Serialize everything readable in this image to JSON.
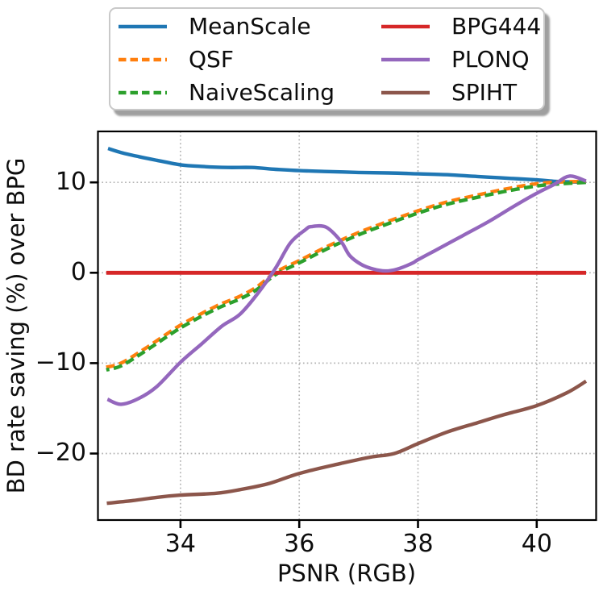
{
  "chart_data": {
    "type": "line",
    "xlabel": "PSNR (RGB)",
    "ylabel": "BD rate saving (%) over BPG",
    "xlim": [
      32.61,
      41.0
    ],
    "ylim": [
      -27.36,
      15.64
    ],
    "grid": true,
    "grid_color": "#b3b3b3",
    "spine_color": "#000000",
    "legend_border_color": "#c9c9c9",
    "legend_position": "top",
    "xticks": [
      {
        "value": 34,
        "label": "34"
      },
      {
        "value": 36,
        "label": "36"
      },
      {
        "value": 38,
        "label": "38"
      },
      {
        "value": 40,
        "label": "40"
      }
    ],
    "yticks": [
      {
        "value": 10,
        "label": "10"
      },
      {
        "value": 0,
        "label": "0"
      },
      {
        "value": -10,
        "label": "−10"
      },
      {
        "value": -20,
        "label": "−20"
      }
    ],
    "series": [
      {
        "name": "MeanScale",
        "color": "#1f77b4",
        "dashed": false,
        "points": [
          [
            32.78,
            13.75
          ],
          [
            33.0,
            13.3
          ],
          [
            33.3,
            12.85
          ],
          [
            33.6,
            12.45
          ],
          [
            34.0,
            11.95
          ],
          [
            34.4,
            11.75
          ],
          [
            34.8,
            11.65
          ],
          [
            35.2,
            11.65
          ],
          [
            35.6,
            11.45
          ],
          [
            36.0,
            11.3
          ],
          [
            36.5,
            11.2
          ],
          [
            37.0,
            11.1
          ],
          [
            37.5,
            11.05
          ],
          [
            38.0,
            10.95
          ],
          [
            38.5,
            10.85
          ],
          [
            39.0,
            10.65
          ],
          [
            39.4,
            10.5
          ],
          [
            40.0,
            10.28
          ],
          [
            40.3,
            10.12
          ],
          [
            40.6,
            10.05
          ],
          [
            40.83,
            10.05
          ]
        ]
      },
      {
        "name": "QSF",
        "color": "#ff7f0e",
        "dashed": true,
        "points": [
          [
            32.75,
            -10.45
          ],
          [
            33.0,
            -10.0
          ],
          [
            33.4,
            -8.4
          ],
          [
            34.0,
            -5.8
          ],
          [
            34.6,
            -3.7
          ],
          [
            35.0,
            -2.6
          ],
          [
            35.3,
            -1.5
          ],
          [
            35.6,
            0.05
          ],
          [
            36.0,
            1.35
          ],
          [
            36.5,
            3.0
          ],
          [
            37.0,
            4.45
          ],
          [
            37.4,
            5.45
          ],
          [
            38.0,
            6.85
          ],
          [
            38.5,
            7.85
          ],
          [
            39.0,
            8.6
          ],
          [
            39.5,
            9.3
          ],
          [
            40.0,
            9.85
          ],
          [
            40.4,
            10.05
          ],
          [
            40.83,
            10.1
          ]
        ]
      },
      {
        "name": "NaiveScaling",
        "color": "#2ca02c",
        "dashed": true,
        "points": [
          [
            32.75,
            -10.75
          ],
          [
            33.0,
            -10.3
          ],
          [
            33.4,
            -8.7
          ],
          [
            34.0,
            -6.1
          ],
          [
            34.6,
            -4.0
          ],
          [
            35.0,
            -2.9
          ],
          [
            35.3,
            -1.8
          ],
          [
            35.6,
            -0.2
          ],
          [
            36.0,
            1.1
          ],
          [
            36.5,
            2.75
          ],
          [
            37.0,
            4.2
          ],
          [
            37.4,
            5.2
          ],
          [
            38.0,
            6.6
          ],
          [
            38.5,
            7.6
          ],
          [
            39.0,
            8.35
          ],
          [
            39.5,
            9.05
          ],
          [
            40.0,
            9.6
          ],
          [
            40.4,
            9.85
          ],
          [
            40.83,
            10.0
          ]
        ]
      },
      {
        "name": "BPG444",
        "color": "#d62728",
        "dashed": false,
        "points": [
          [
            32.75,
            0
          ],
          [
            36.0,
            0
          ],
          [
            40.83,
            0
          ]
        ]
      },
      {
        "name": "PLONQ",
        "color": "#9467bd",
        "dashed": false,
        "points": [
          [
            32.77,
            -14.0
          ],
          [
            33.0,
            -14.55
          ],
          [
            33.3,
            -13.9
          ],
          [
            33.6,
            -12.6
          ],
          [
            34.0,
            -9.9
          ],
          [
            34.35,
            -7.9
          ],
          [
            34.7,
            -5.9
          ],
          [
            35.0,
            -4.6
          ],
          [
            35.3,
            -2.3
          ],
          [
            35.6,
            0.5
          ],
          [
            35.85,
            3.3
          ],
          [
            36.1,
            4.75
          ],
          [
            36.2,
            5.1
          ],
          [
            36.45,
            5.05
          ],
          [
            36.7,
            3.5
          ],
          [
            36.85,
            1.9
          ],
          [
            37.05,
            0.9
          ],
          [
            37.25,
            0.4
          ],
          [
            37.45,
            0.2
          ],
          [
            37.65,
            0.4
          ],
          [
            37.9,
            1.05
          ],
          [
            38.0,
            1.45
          ],
          [
            38.3,
            2.5
          ],
          [
            38.75,
            4.1
          ],
          [
            39.2,
            5.7
          ],
          [
            39.6,
            7.3
          ],
          [
            40.0,
            8.8
          ],
          [
            40.3,
            9.8
          ],
          [
            40.55,
            10.7
          ],
          [
            40.83,
            10.15
          ]
        ]
      },
      {
        "name": "SPIHT",
        "color": "#8c564b",
        "dashed": false,
        "points": [
          [
            32.76,
            -25.5
          ],
          [
            33.2,
            -25.2
          ],
          [
            33.6,
            -24.85
          ],
          [
            34.0,
            -24.6
          ],
          [
            34.6,
            -24.4
          ],
          [
            35.0,
            -24.0
          ],
          [
            35.5,
            -23.3
          ],
          [
            36.0,
            -22.2
          ],
          [
            36.7,
            -21.1
          ],
          [
            37.2,
            -20.4
          ],
          [
            37.6,
            -20.0
          ],
          [
            38.0,
            -18.9
          ],
          [
            38.5,
            -17.6
          ],
          [
            39.0,
            -16.6
          ],
          [
            39.45,
            -15.7
          ],
          [
            40.0,
            -14.7
          ],
          [
            40.5,
            -13.3
          ],
          [
            40.83,
            -12.0
          ]
        ]
      }
    ],
    "legend": {
      "columns": [
        [
          "MeanScale",
          "QSF",
          "NaiveScaling"
        ],
        [
          "BPG444",
          "PLONQ",
          "SPIHT"
        ]
      ]
    }
  }
}
